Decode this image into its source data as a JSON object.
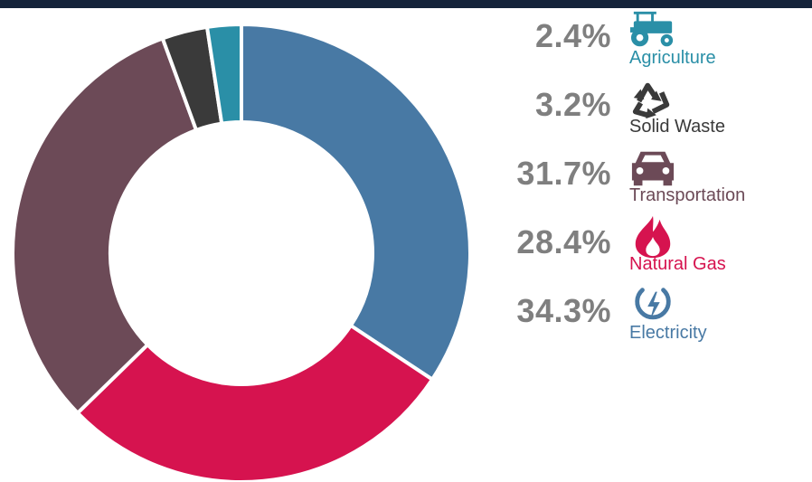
{
  "chart_data": {
    "type": "donut",
    "title": "",
    "slices": [
      {
        "label": "Electricity",
        "value": 34.3,
        "display": "34.3%",
        "color": "#4879a4",
        "icon": "power-icon"
      },
      {
        "label": "Natural Gas",
        "value": 28.4,
        "display": "28.4%",
        "color": "#d6134f",
        "icon": "flame-icon"
      },
      {
        "label": "Transportation",
        "value": 31.7,
        "display": "31.7%",
        "color": "#6c4a57",
        "icon": "car-icon"
      },
      {
        "label": "Solid Waste",
        "value": 3.2,
        "display": "3.2%",
        "color": "#3a3a3a",
        "icon": "recycle-icon"
      },
      {
        "label": "Agriculture",
        "value": 2.4,
        "display": "2.4%",
        "color": "#2a8fa7",
        "icon": "tractor-icon"
      }
    ],
    "start_angle_deg": 0,
    "direction": "clockwise",
    "legend_position": "right"
  },
  "legend": {
    "order": [
      "Agriculture",
      "Solid Waste",
      "Transportation",
      "Natural Gas",
      "Electricity"
    ]
  },
  "colors": {
    "top_bar": "#14233a",
    "percent_text": "#7f7f7f"
  }
}
